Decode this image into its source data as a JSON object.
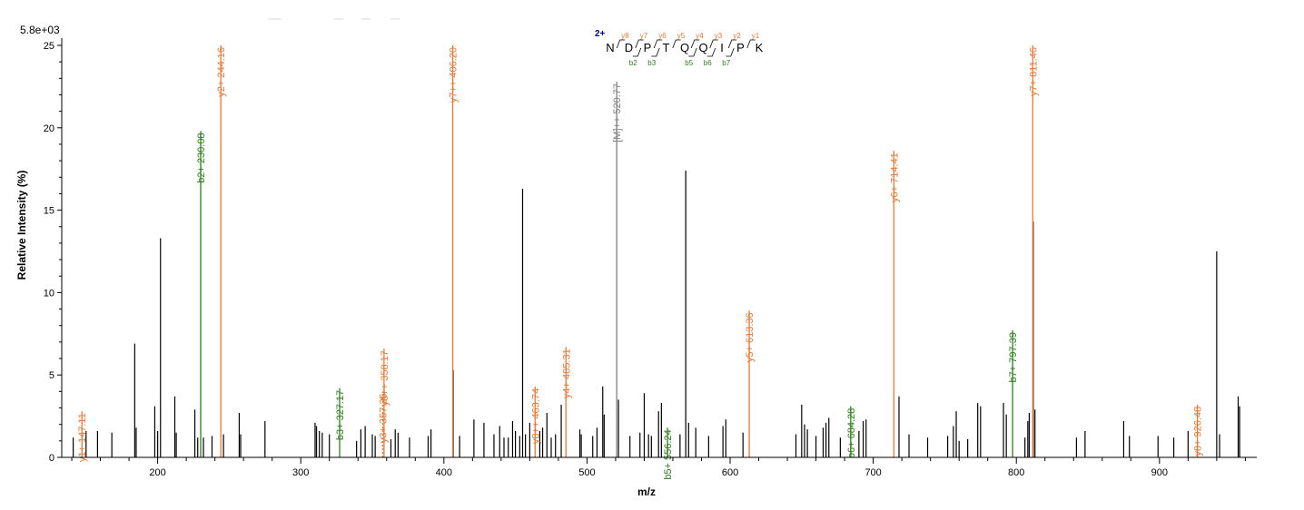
{
  "chart_data": {
    "type": "bar",
    "subtype": "ms-ms-spectrum",
    "scale_label": "5.8e+03",
    "xlabel": "m/z",
    "ylabel": "Relative  Intensity (%)",
    "xlim": [
      133,
      968
    ],
    "ylim": [
      0,
      25
    ],
    "x_ticks": [
      200,
      300,
      400,
      500,
      600,
      700,
      800,
      900
    ],
    "y_ticks": [
      0,
      5,
      10,
      15,
      20,
      25
    ],
    "colors": {
      "b_ion": "#2e7d1e",
      "y_ion": "#e07b39",
      "precursor": "#808080",
      "unassigned": "#000000",
      "charge": "#00008b"
    },
    "peptide": {
      "charge_label": "2+",
      "sequence": [
        "N",
        "D",
        "P",
        "T",
        "Q",
        "Q",
        "I",
        "P",
        "K"
      ],
      "y_markers": [
        {
          "after": 0,
          "label": "y8"
        },
        {
          "after": 1,
          "label": "y7"
        },
        {
          "after": 2,
          "label": "y6"
        },
        {
          "after": 3,
          "label": "y5"
        },
        {
          "after": 4,
          "label": "y4"
        },
        {
          "after": 5,
          "label": "y3"
        },
        {
          "after": 6,
          "label": "y2"
        },
        {
          "after": 7,
          "label": "y1"
        }
      ],
      "b_markers": [
        {
          "after": 1,
          "label": "b2"
        },
        {
          "after": 2,
          "label": "b3"
        },
        {
          "after": 4,
          "label": "b5"
        },
        {
          "after": 5,
          "label": "b6"
        },
        {
          "after": 6,
          "label": "b7"
        }
      ]
    },
    "labeled_peaks": [
      {
        "mz": 147.11,
        "intensity": 2.8,
        "ion": "y",
        "label": "y1+ 147.11"
      },
      {
        "mz": 230.08,
        "intensity": 19.8,
        "ion": "b",
        "label": "b2+ 230.08"
      },
      {
        "mz": 244.16,
        "intensity": 25.0,
        "ion": "y",
        "label": "y2+ 244.16"
      },
      {
        "mz": 327.17,
        "intensity": 4.2,
        "ion": "b",
        "label": "b3+ 327.17"
      },
      {
        "mz": 357.25,
        "intensity": 4.0,
        "ion": "y",
        "label": "y3+ 357.25",
        "dashed": true
      },
      {
        "mz": 358.17,
        "intensity": 6.6,
        "ion": "y",
        "label": "y6++ 358.17"
      },
      {
        "mz": 406.2,
        "intensity": 25.0,
        "ion": "y",
        "label": "y7++ 406.20"
      },
      {
        "mz": 463.74,
        "intensity": 4.3,
        "ion": "y",
        "label": "y8++ 463.74"
      },
      {
        "mz": 485.31,
        "intensity": 6.7,
        "ion": "y",
        "label": "y4+ 485.31"
      },
      {
        "mz": 520.77,
        "intensity": 22.8,
        "ion": "precursor",
        "label": "[M]++ 520.77"
      },
      {
        "mz": 556.24,
        "intensity": 1.8,
        "ion": "b",
        "label": "b5+ 556.24"
      },
      {
        "mz": 613.36,
        "intensity": 8.9,
        "ion": "y",
        "label": "y5+ 613.36"
      },
      {
        "mz": 684.28,
        "intensity": 3.1,
        "ion": "b",
        "label": "b6+ 684.28"
      },
      {
        "mz": 714.41,
        "intensity": 18.6,
        "ion": "y",
        "label": "y6+ 714.41"
      },
      {
        "mz": 797.39,
        "intensity": 7.7,
        "ion": "b",
        "label": "b7+ 797.39"
      },
      {
        "mz": 811.46,
        "intensity": 25.0,
        "ion": "y",
        "label": "y7+ 811.46"
      },
      {
        "mz": 926.48,
        "intensity": 3.2,
        "ion": "y",
        "label": "y8+ 926.48"
      }
    ],
    "unlabeled_peaks": [
      [
        141,
        1.2
      ],
      [
        150,
        1.6
      ],
      [
        158,
        1.6
      ],
      [
        168,
        1.5
      ],
      [
        184,
        6.9
      ],
      [
        185,
        1.8
      ],
      [
        198,
        3.1
      ],
      [
        200,
        1.6
      ],
      [
        202,
        13.3
      ],
      [
        212,
        3.7
      ],
      [
        213,
        1.5
      ],
      [
        226,
        2.9
      ],
      [
        228,
        1.2
      ],
      [
        232,
        1.2
      ],
      [
        238,
        1.3
      ],
      [
        246,
        1.4
      ],
      [
        257,
        2.7
      ],
      [
        258,
        1.4
      ],
      [
        275,
        2.2
      ],
      [
        310,
        2.1
      ],
      [
        311,
        1.9
      ],
      [
        313,
        1.6
      ],
      [
        315,
        1.5
      ],
      [
        320,
        1.4
      ],
      [
        339,
        1.0
      ],
      [
        342,
        1.7
      ],
      [
        345,
        1.9
      ],
      [
        350,
        1.4
      ],
      [
        352,
        1.3
      ],
      [
        363,
        1.1
      ],
      [
        366,
        1.7
      ],
      [
        368,
        1.5
      ],
      [
        376,
        1.2
      ],
      [
        389,
        1.3
      ],
      [
        391,
        1.7
      ],
      [
        406.5,
        5.3
      ],
      [
        411,
        1.3
      ],
      [
        421,
        2.3
      ],
      [
        428,
        2.1
      ],
      [
        435,
        1.4
      ],
      [
        439,
        1.9
      ],
      [
        442,
        1.2
      ],
      [
        445,
        1.2
      ],
      [
        448,
        2.2
      ],
      [
        450,
        1.6
      ],
      [
        453,
        1.3
      ],
      [
        455,
        16.3
      ],
      [
        457,
        1.4
      ],
      [
        460,
        2.1
      ],
      [
        467,
        1.6
      ],
      [
        469,
        1.8
      ],
      [
        472,
        2.7
      ],
      [
        475,
        1.2
      ],
      [
        478,
        1.4
      ],
      [
        482,
        3.2
      ],
      [
        495,
        1.7
      ],
      [
        496,
        1.4
      ],
      [
        504,
        1.3
      ],
      [
        507,
        1.8
      ],
      [
        511,
        4.3
      ],
      [
        512,
        2.6
      ],
      [
        522,
        3.5
      ],
      [
        530,
        1.3
      ],
      [
        537,
        1.5
      ],
      [
        540,
        3.9
      ],
      [
        543,
        1.4
      ],
      [
        545,
        1.3
      ],
      [
        550,
        2.8
      ],
      [
        552,
        3.3
      ],
      [
        565,
        1.4
      ],
      [
        569,
        17.4
      ],
      [
        571,
        2.1
      ],
      [
        576,
        1.8
      ],
      [
        585,
        1.3
      ],
      [
        595,
        1.9
      ],
      [
        597,
        2.3
      ],
      [
        609,
        1.5
      ],
      [
        646,
        1.4
      ],
      [
        650,
        3.2
      ],
      [
        652,
        2.0
      ],
      [
        654,
        1.7
      ],
      [
        660,
        1.3
      ],
      [
        665,
        1.8
      ],
      [
        667,
        2.1
      ],
      [
        669,
        2.4
      ],
      [
        677,
        1.2
      ],
      [
        690,
        1.6
      ],
      [
        693,
        2.2
      ],
      [
        695,
        2.3
      ],
      [
        718,
        3.7
      ],
      [
        725,
        1.4
      ],
      [
        738,
        1.2
      ],
      [
        752,
        1.3
      ],
      [
        756,
        1.9
      ],
      [
        758,
        2.8
      ],
      [
        760,
        1.0
      ],
      [
        766,
        1.1
      ],
      [
        773,
        3.3
      ],
      [
        775,
        3.1
      ],
      [
        791,
        3.3
      ],
      [
        793,
        2.6
      ],
      [
        806,
        1.2
      ],
      [
        808,
        2.2
      ],
      [
        809,
        2.7
      ],
      [
        811.8,
        14.3
      ],
      [
        813,
        2.9
      ],
      [
        842,
        1.2
      ],
      [
        848,
        1.6
      ],
      [
        875,
        2.2
      ],
      [
        879,
        1.3
      ],
      [
        899,
        1.3
      ],
      [
        910,
        1.2
      ],
      [
        920,
        1.6
      ],
      [
        940,
        12.5
      ],
      [
        942,
        1.4
      ],
      [
        955,
        3.7
      ],
      [
        956,
        3.1
      ]
    ]
  }
}
